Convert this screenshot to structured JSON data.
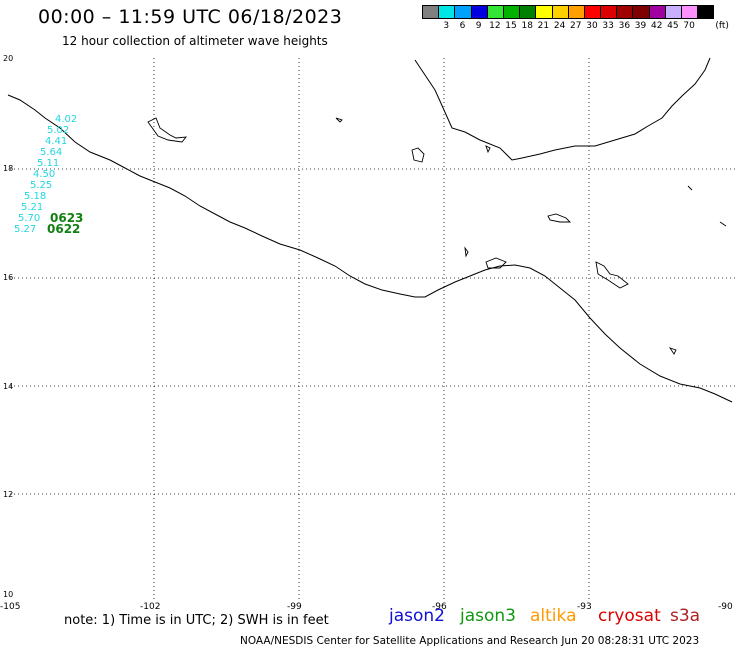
{
  "header": {
    "title": "00:00 – 11:59 UTC 06/18/2023",
    "subtitle": "12 hour collection of altimeter wave heights"
  },
  "color_scale": {
    "unit": "(ft)",
    "bins": [
      {
        "label": "",
        "color": "#808080"
      },
      {
        "label": "3",
        "color": "#00e5e5"
      },
      {
        "label": "6",
        "color": "#00a0ff"
      },
      {
        "label": "9",
        "color": "#0000e0"
      },
      {
        "label": "12",
        "color": "#33e633"
      },
      {
        "label": "15",
        "color": "#00b300"
      },
      {
        "label": "18",
        "color": "#008000"
      },
      {
        "label": "21",
        "color": "#ffff00"
      },
      {
        "label": "24",
        "color": "#ffd000"
      },
      {
        "label": "27",
        "color": "#ffa000"
      },
      {
        "label": "30",
        "color": "#ff0000"
      },
      {
        "label": "33",
        "color": "#dd0000"
      },
      {
        "label": "36",
        "color": "#a00000"
      },
      {
        "label": "39",
        "color": "#800000"
      },
      {
        "label": "42",
        "color": "#a000a0"
      },
      {
        "label": "45",
        "color": "#c8b0ff"
      },
      {
        "label": "70",
        "color": "#ff90ff"
      },
      {
        "label": "",
        "color": "#000000"
      }
    ]
  },
  "axes": {
    "lat_labels": [
      "20",
      "18",
      "16",
      "14",
      "12",
      "10"
    ],
    "lon_labels": [
      "-105",
      "-102",
      "-99",
      "-96",
      "-93",
      "-90"
    ]
  },
  "wave_heights": [
    "4.02",
    "5.02",
    "4.41",
    "5.64",
    "5.11",
    "4.50",
    "5.25",
    "5.18",
    "5.21",
    "5.70",
    "5.27"
  ],
  "track_dates": [
    "0623",
    "0622"
  ],
  "footer": {
    "note": "note:  1) Time is in UTC;  2) SWH is in feet",
    "satellites": [
      {
        "name": "jason2",
        "color": "#1010d0"
      },
      {
        "name": "jason3",
        "color": "#119911"
      },
      {
        "name": "altika",
        "color": "#ff9900"
      },
      {
        "name": "cryosat",
        "color": "#dd0000"
      },
      {
        "name": "s3a",
        "color": "#aa2222"
      }
    ],
    "credit": "NOAA/NESDIS Center for Satellite Applications and Research    Jun 20 08:28:31 UTC 2023"
  }
}
